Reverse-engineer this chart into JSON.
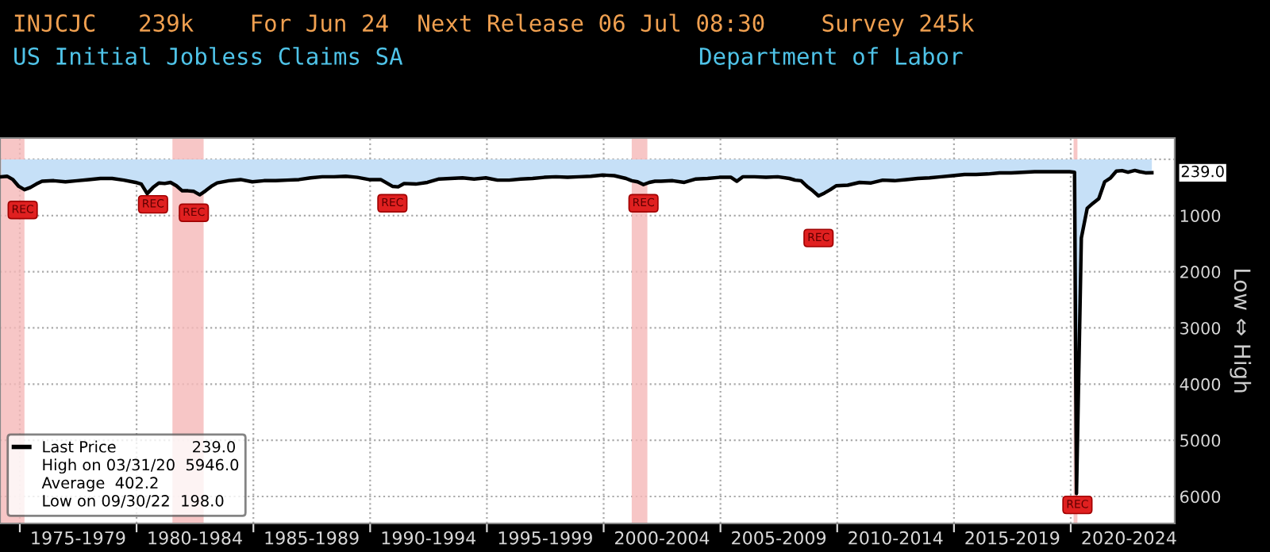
{
  "chart_data": {
    "type": "area",
    "title": "INJCJC   239k    For Jun 24  Next Release 06 Jul 08:30    Survey 245k",
    "subtitle": "US Initial Jobless Claims SA",
    "ylabel": "Low ⇔ High",
    "annotations": [
      "Department of Labor",
      "239.0",
      "High on 03/31/20  5946.0",
      "Average  402.2",
      "Low on 09/30/22  198.0",
      {
        "text": "239.0",
        "x": "2023-06-23",
        "y": 239
      },
      {
        "text": "REC",
        "x": "1975-02",
        "y": 900
      },
      {
        "text": "REC",
        "x": "1980-09",
        "y": 800
      },
      {
        "text": "REC",
        "x": "1982-06",
        "y": 950
      },
      {
        "text": "REC",
        "x": "1990-12",
        "y": 780
      },
      {
        "text": "REC",
        "x": "2001-09",
        "y": 780
      },
      {
        "text": "REC",
        "x": "2009-03",
        "y": 1400
      },
      {
        "text": "REC",
        "x": "2020-04",
        "y": 6150
      }
    ],
    "x": [
      "1974-03",
      "1974-06",
      "1974-09",
      "1974-12",
      "1975-03",
      "1975-06",
      "1975-09",
      "1975-12",
      "1976-06",
      "1976-12",
      "1977-06",
      "1977-12",
      "1978-06",
      "1978-12",
      "1979-06",
      "1979-12",
      "1980-03",
      "1980-06",
      "1980-09",
      "1980-12",
      "1981-03",
      "1981-06",
      "1981-09",
      "1981-12",
      "1982-03",
      "1982-06",
      "1982-09",
      "1982-12",
      "1983-03",
      "1983-06",
      "1983-12",
      "1984-06",
      "1984-12",
      "1985-06",
      "1985-12",
      "1986-06",
      "1986-12",
      "1987-06",
      "1987-12",
      "1988-06",
      "1988-12",
      "1989-06",
      "1989-12",
      "1990-06",
      "1990-09",
      "1990-12",
      "1991-03",
      "1991-06",
      "1991-12",
      "1992-06",
      "1992-12",
      "1993-06",
      "1993-12",
      "1994-06",
      "1994-12",
      "1995-06",
      "1995-12",
      "1996-06",
      "1996-12",
      "1997-06",
      "1997-12",
      "1998-06",
      "1998-12",
      "1999-06",
      "1999-12",
      "2000-06",
      "2000-12",
      "2001-03",
      "2001-06",
      "2001-09",
      "2001-12",
      "2002-03",
      "2002-06",
      "2002-12",
      "2003-06",
      "2003-12",
      "2004-06",
      "2004-12",
      "2005-06",
      "2005-09",
      "2005-12",
      "2006-06",
      "2006-12",
      "2007-06",
      "2007-12",
      "2008-03",
      "2008-06",
      "2008-09",
      "2008-12",
      "2009-03",
      "2009-06",
      "2009-09",
      "2009-12",
      "2010-06",
      "2010-12",
      "2011-06",
      "2011-12",
      "2012-06",
      "2012-12",
      "2013-06",
      "2013-12",
      "2014-06",
      "2014-12",
      "2015-06",
      "2015-12",
      "2016-06",
      "2016-12",
      "2017-06",
      "2017-12",
      "2018-06",
      "2018-12",
      "2019-06",
      "2019-12",
      "2020-03-01",
      "2020-03-31",
      "2020-06",
      "2020-09",
      "2020-12",
      "2021-03",
      "2021-06",
      "2021-09",
      "2021-12",
      "2022-03",
      "2022-06",
      "2022-09-30",
      "2022-12",
      "2023-03",
      "2023-06-23"
    ],
    "series": [
      {
        "name": "Last Price",
        "color": "#000000",
        "values": [
          310,
          300,
          360,
          480,
          540,
          500,
          440,
          390,
          380,
          400,
          380,
          360,
          340,
          340,
          370,
          410,
          440,
          610,
          500,
          420,
          430,
          410,
          470,
          560,
          560,
          570,
          630,
          560,
          480,
          420,
          380,
          360,
          400,
          380,
          380,
          370,
          360,
          330,
          310,
          310,
          300,
          320,
          360,
          360,
          420,
          480,
          490,
          430,
          440,
          410,
          350,
          340,
          330,
          350,
          330,
          370,
          370,
          350,
          340,
          320,
          310,
          320,
          310,
          300,
          280,
          290,
          340,
          380,
          400,
          450,
          410,
          390,
          390,
          380,
          410,
          350,
          340,
          320,
          320,
          390,
          310,
          310,
          320,
          310,
          340,
          370,
          380,
          480,
          560,
          650,
          600,
          540,
          470,
          460,
          410,
          420,
          370,
          380,
          360,
          340,
          330,
          310,
          290,
          270,
          270,
          260,
          240,
          240,
          230,
          220,
          220,
          220,
          220,
          230,
          5946,
          1400,
          870,
          780,
          700,
          400,
          330,
          210,
          200,
          230,
          198,
          220,
          240,
          239
        ]
      }
    ],
    "xlim": [
      "1974-02-25",
      "2024-06-15"
    ],
    "xticks": [
      {
        "value": "1975-01-01",
        "label": null
      },
      {
        "value": "1977-07-01",
        "label": "1975-1979"
      },
      {
        "value": "1980-01-01",
        "label": null
      },
      {
        "value": "1982-07-01",
        "label": "1980-1984"
      },
      {
        "value": "1985-01-01",
        "label": null
      },
      {
        "value": "1987-07-01",
        "label": "1985-1989"
      },
      {
        "value": "1990-01-01",
        "label": null
      },
      {
        "value": "1992-07-01",
        "label": "1990-1994"
      },
      {
        "value": "1995-01-01",
        "label": null
      },
      {
        "value": "1997-07-01",
        "label": "1995-1999"
      },
      {
        "value": "2000-01-01",
        "label": null
      },
      {
        "value": "2002-07-01",
        "label": "2000-2004"
      },
      {
        "value": "2005-01-01",
        "label": null
      },
      {
        "value": "2007-07-01",
        "label": "2005-2009"
      },
      {
        "value": "2010-01-01",
        "label": null
      },
      {
        "value": "2012-07-01",
        "label": "2010-2014"
      },
      {
        "value": "2015-01-01",
        "label": null
      },
      {
        "value": "2017-07-01",
        "label": "2015-2019"
      },
      {
        "value": "2020-01-01",
        "label": null
      },
      {
        "value": "2022-07-01",
        "label": "2020-2024"
      }
    ],
    "ylim": [
      6480,
      -380
    ],
    "yticks": [
      {
        "value": 0,
        "label": null
      },
      1000,
      2000,
      3000,
      4000,
      5000,
      6000
    ],
    "bands": [
      {
        "axis": "x",
        "from": "1973-11",
        "to": "1975-03",
        "color": "#f5b8b8"
      },
      {
        "axis": "x",
        "from": "1981-07",
        "to": "1982-11",
        "color": "#f5b8b8"
      },
      {
        "axis": "x",
        "from": "2001-03",
        "to": "2001-11",
        "color": "#f5b8b8"
      },
      {
        "axis": "x",
        "from": "2020-02",
        "to": "2020-04",
        "color": "#f5b8b8"
      }
    ],
    "grid": true,
    "legend": "bottom left"
  }
}
